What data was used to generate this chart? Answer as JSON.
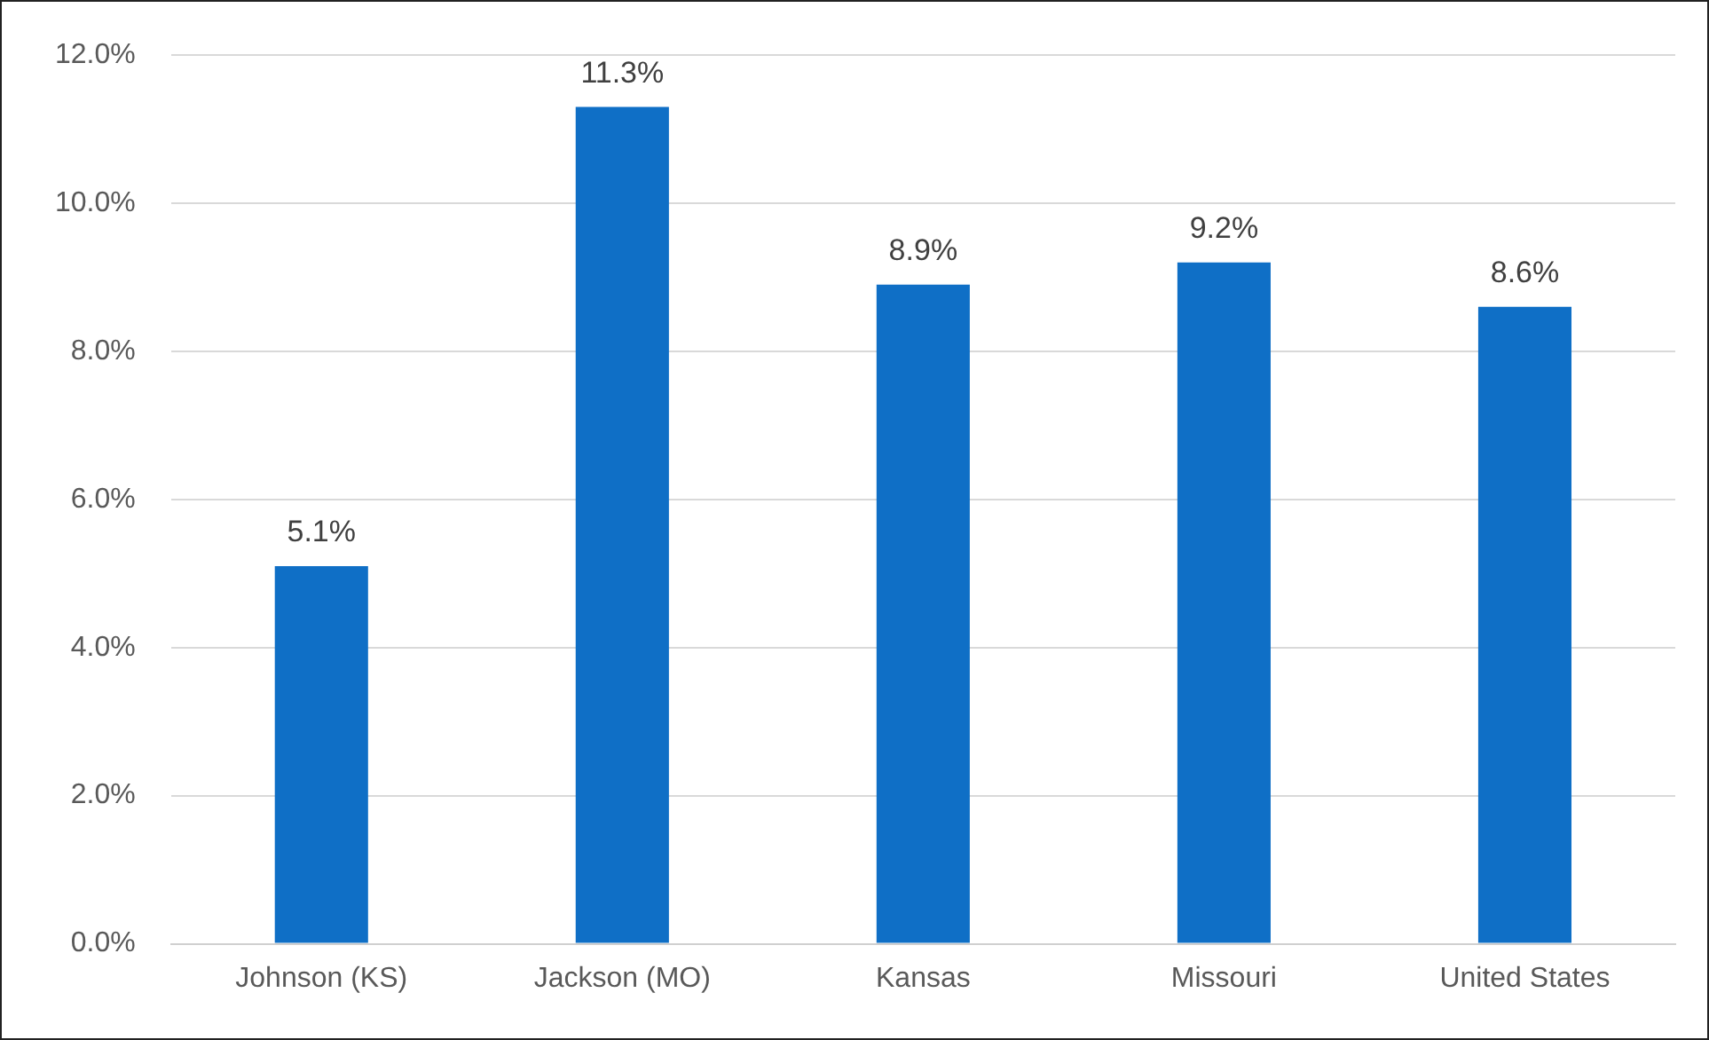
{
  "chart_data": {
    "type": "bar",
    "categories": [
      "Johnson (KS)",
      "Jackson (MO)",
      "Kansas",
      "Missouri",
      "United States"
    ],
    "values": [
      5.1,
      11.3,
      8.9,
      9.2,
      8.6
    ],
    "value_labels": [
      "5.1%",
      "11.3%",
      "8.9%",
      "9.2%",
      "8.6%"
    ],
    "color": "#0f6fc6",
    "ylim": [
      0,
      12
    ],
    "yticks": [
      {
        "value": 0,
        "label": "0.0%"
      },
      {
        "value": 2,
        "label": "2.0%"
      },
      {
        "value": 4,
        "label": "4.0%"
      },
      {
        "value": 6,
        "label": "6.0%"
      },
      {
        "value": 8,
        "label": "8.0%"
      },
      {
        "value": 10,
        "label": "10.0%"
      },
      {
        "value": 12,
        "label": "12.0%"
      }
    ],
    "grid": "y"
  }
}
